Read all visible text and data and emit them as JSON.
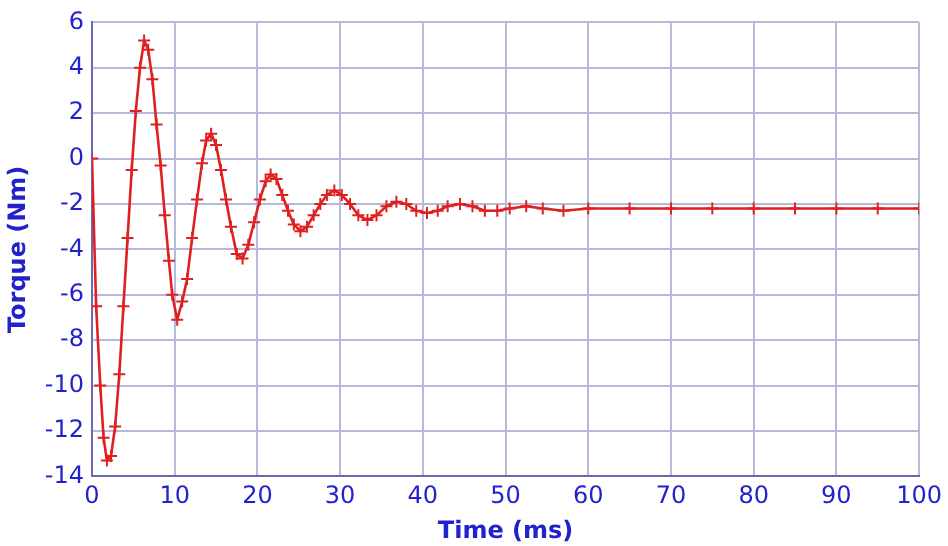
{
  "chart_data": {
    "type": "line",
    "xlabel": "Time (ms)",
    "ylabel": "Torque (Nm)",
    "x": [
      0,
      0.5,
      1,
      1.4,
      1.8,
      2.3,
      2.8,
      3.3,
      3.8,
      4.3,
      4.8,
      5.3,
      5.8,
      6.3,
      6.8,
      7.3,
      7.8,
      8.3,
      8.8,
      9.3,
      9.7,
      10.3,
      10.9,
      11.5,
      12.1,
      12.7,
      13.3,
      13.8,
      14.4,
      15,
      15.6,
      16.2,
      16.8,
      17.5,
      18.2,
      18.9,
      19.6,
      20.3,
      21,
      21.6,
      22.3,
      23,
      23.7,
      24.4,
      25.2,
      26,
      26.8,
      27.6,
      28.4,
      29.3,
      30.2,
      31.2,
      32.2,
      33.3,
      34.4,
      35.6,
      36.8,
      38,
      39.2,
      40.5,
      41.8,
      43,
      44.5,
      46,
      47.5,
      49,
      50.5,
      52.5,
      54.5,
      57,
      60,
      65,
      70,
      75,
      80,
      85,
      90,
      95,
      100
    ],
    "values": [
      0,
      -6.5,
      -10,
      -12.3,
      -13.3,
      -13.1,
      -11.8,
      -9.5,
      -6.5,
      -3.5,
      -0.5,
      2.1,
      4.0,
      5.2,
      4.8,
      3.5,
      1.5,
      -0.3,
      -2.5,
      -4.5,
      -6,
      -7.1,
      -6.3,
      -5.3,
      -3.5,
      -1.8,
      -0.2,
      0.8,
      1.1,
      0.6,
      -0.5,
      -1.8,
      -3,
      -4.2,
      -4.4,
      -3.8,
      -2.8,
      -1.8,
      -1,
      -0.7,
      -0.9,
      -1.6,
      -2.3,
      -2.9,
      -3.2,
      -3,
      -2.5,
      -2,
      -1.6,
      -1.4,
      -1.6,
      -2.0,
      -2.5,
      -2.7,
      -2.5,
      -2.1,
      -1.9,
      -2.0,
      -2.3,
      -2.4,
      -2.3,
      -2.1,
      -2.0,
      -2.1,
      -2.3,
      -2.3,
      -2.2,
      -2.1,
      -2.2,
      -2.3,
      -2.2,
      -2.2,
      -2.2,
      -2.2,
      -2.2,
      -2.2,
      -2.2,
      -2.2,
      -2.2
    ],
    "color": "#e02020",
    "marker": "cross",
    "line_style": "solid",
    "grid": true,
    "legend": false,
    "xlim": [
      0,
      100
    ],
    "xticks": [
      0,
      10,
      20,
      30,
      40,
      50,
      60,
      70,
      80,
      90,
      100
    ],
    "ylim": [
      -14,
      6
    ],
    "yticks": [
      -14,
      -12,
      -10,
      -8,
      -6,
      -4,
      -2,
      0,
      2,
      4,
      6
    ]
  }
}
